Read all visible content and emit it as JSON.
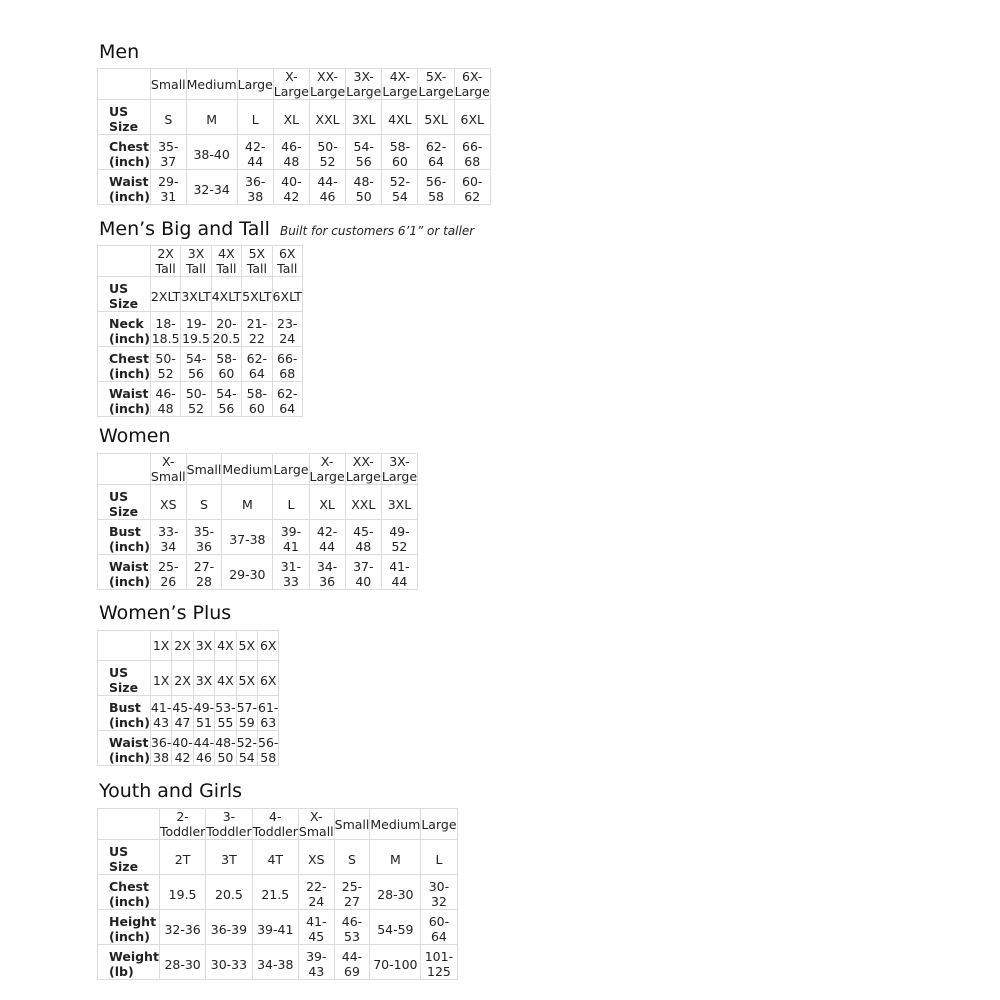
{
  "tables": [
    {
      "title": "Men",
      "subtitle": "",
      "columns": [
        "Small",
        "Medium",
        "Large",
        "X-Large",
        "XX-Large",
        "3X-Large",
        "4X-Large",
        "5X-Large",
        "6X-Large"
      ],
      "rows": [
        {
          "label": "US Size",
          "values": [
            "S",
            "M",
            "L",
            "XL",
            "XXL",
            "3XL",
            "4XL",
            "5XL",
            "6XL"
          ]
        },
        {
          "label": "Chest (inch)",
          "values": [
            "35-37",
            "38-40",
            "42-44",
            "46-48",
            "50-52",
            "54-56",
            "58-60",
            "62-64",
            "66-68"
          ]
        },
        {
          "label": "Waist (inch)",
          "values": [
            "29-31",
            "32-34",
            "36-38",
            "40-42",
            "44-46",
            "48-50",
            "52-54",
            "56-58",
            "60-62"
          ]
        }
      ]
    },
    {
      "title": "Men’s Big and Tall",
      "subtitle": "Built for customers 6’1” or taller",
      "columns": [
        "2X Tall",
        "3X Tall",
        "4X Tall",
        "5X Tall",
        "6X Tall"
      ],
      "rows": [
        {
          "label": "US Size",
          "values": [
            "2XLT",
            "3XLT",
            "4XLT",
            "5XLT",
            "6XLT"
          ]
        },
        {
          "label": "Neck (inch)",
          "values": [
            "18-18.5",
            "19-19.5",
            "20-20.5",
            "21-22",
            "23-24"
          ]
        },
        {
          "label": "Chest (inch)",
          "values": [
            "50-52",
            "54-56",
            "58-60",
            "62-64",
            "66-68"
          ]
        },
        {
          "label": "Waist (inch)",
          "values": [
            "46-48",
            "50-52",
            "54-56",
            "58-60",
            "62-64"
          ]
        }
      ]
    },
    {
      "title": "Women",
      "subtitle": "",
      "columns": [
        "X-Small",
        "Small",
        "Medium",
        "Large",
        "X-Large",
        "XX-Large",
        "3X-Large"
      ],
      "rows": [
        {
          "label": "US Size",
          "values": [
            "XS",
            "S",
            "M",
            "L",
            "XL",
            "XXL",
            "3XL"
          ]
        },
        {
          "label": "Bust (inch)",
          "values": [
            "33-34",
            "35-36",
            "37-38",
            "39-41",
            "42-44",
            "45-48",
            "49-52"
          ]
        },
        {
          "label": "Waist (inch)",
          "values": [
            "25-26",
            "27-28",
            "29-30",
            "31-33",
            "34-36",
            "37-40",
            "41-44"
          ]
        }
      ]
    },
    {
      "title": "Women’s  Plus",
      "subtitle": "",
      "columns": [
        "1X",
        "2X",
        "3X",
        "4X",
        "5X",
        "6X"
      ],
      "rows": [
        {
          "label": "US Size",
          "values": [
            "1X",
            "2X",
            "3X",
            "4X",
            "5X",
            "6X"
          ]
        },
        {
          "label": "Bust (inch)",
          "values": [
            "41-43",
            "45-47",
            "49-51",
            "53-55",
            "57-59",
            "61-63"
          ]
        },
        {
          "label": "Waist (inch)",
          "values": [
            "36-38",
            "40-42",
            "44-46",
            "48-50",
            "52-54",
            "56-58"
          ]
        }
      ]
    },
    {
      "title": "Youth and Girls",
      "subtitle": "",
      "columns": [
        "2-Toddler",
        "3-Toddler",
        "4-Toddler",
        "X-Small",
        "Small",
        "Medium",
        "Large"
      ],
      "rows": [
        {
          "label": "US Size",
          "values": [
            "2T",
            "3T",
            "4T",
            "XS",
            "S",
            "M",
            "L"
          ]
        },
        {
          "label": "Chest (inch)",
          "values": [
            "19.5",
            "20.5",
            "21.5",
            "22-24",
            "25-27",
            "28-30",
            "30-32"
          ]
        },
        {
          "label": "Height (inch)",
          "values": [
            "32-36",
            "36-39",
            "39-41",
            "41-45",
            "46-53",
            "54-59",
            "60-64"
          ]
        },
        {
          "label": "Weight (lb)",
          "values": [
            "28-30",
            "30-33",
            "34-38",
            "39-43",
            "44-69",
            "70-100",
            "101-125"
          ]
        }
      ]
    }
  ]
}
